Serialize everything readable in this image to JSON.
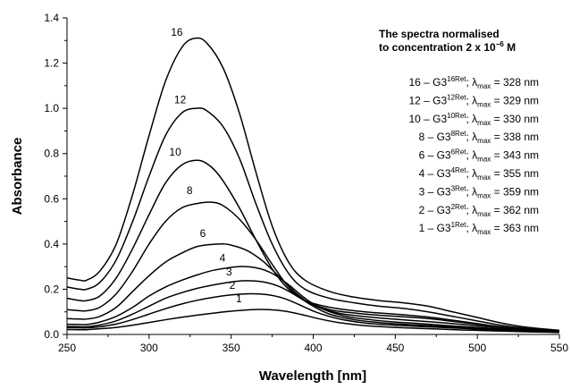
{
  "chart_data": {
    "type": "line",
    "xlabel": "Wavelength [nm]",
    "ylabel": "Absorbance",
    "xlim": [
      250,
      550
    ],
    "ylim": [
      0.0,
      1.4
    ],
    "xticks": [
      "250",
      "300",
      "350",
      "400",
      "450",
      "500",
      "550"
    ],
    "yticks": [
      "0.0",
      "0.2",
      "0.4",
      "0.6",
      "0.8",
      "1.0",
      "1.2",
      "1.4"
    ],
    "grid": false,
    "legend": {
      "placement": "top-right",
      "title_lines": [
        "The spectra normalised",
        "to concentration 2 x 10"
      ],
      "title_superscript": "−6",
      "title_suffix": " M",
      "entries": [
        {
          "prefix": "16 – G3",
          "sup": "16Ret",
          "mid": "; λ",
          "sub": "max",
          "suffix": " = 328 nm"
        },
        {
          "prefix": "12 – G3",
          "sup": "12Ret",
          "mid": "; λ",
          "sub": "max",
          "suffix": " = 329 nm"
        },
        {
          "prefix": "10 – G3",
          "sup": "10Ret",
          "mid": "; λ",
          "sub": "max",
          "suffix": " = 330 nm"
        },
        {
          "prefix": "8 – G3",
          "sup": "8Ret",
          "mid": "; λ",
          "sub": "max",
          "suffix": " = 338 nm"
        },
        {
          "prefix": "6 – G3",
          "sup": "6Ret",
          "mid": "; λ",
          "sub": "max",
          "suffix": " = 343 nm"
        },
        {
          "prefix": "4 – G3",
          "sup": "4Ret",
          "mid": "; λ",
          "sub": "max",
          "suffix": " = 355 nm"
        },
        {
          "prefix": "3 – G3",
          "sup": "3Ret",
          "mid": "; λ",
          "sub": "max",
          "suffix": " = 359 nm"
        },
        {
          "prefix": "2 – G3",
          "sup": "2Ret",
          "mid": "; λ",
          "sub": "max",
          "suffix": " = 362 nm"
        },
        {
          "prefix": "1 – G3",
          "sup": "1Ret",
          "mid": "; λ",
          "sub": "max",
          "suffix": " = 363 nm"
        }
      ]
    },
    "series": [
      {
        "name": "16",
        "label_at": [
          326,
          1.31
        ],
        "points": [
          [
            250,
            0.25
          ],
          [
            258,
            0.24
          ],
          [
            262,
            0.24
          ],
          [
            270,
            0.28
          ],
          [
            280,
            0.4
          ],
          [
            290,
            0.62
          ],
          [
            300,
            0.88
          ],
          [
            310,
            1.12
          ],
          [
            320,
            1.27
          ],
          [
            328,
            1.31
          ],
          [
            335,
            1.29
          ],
          [
            345,
            1.18
          ],
          [
            355,
            0.98
          ],
          [
            365,
            0.72
          ],
          [
            375,
            0.48
          ],
          [
            385,
            0.32
          ],
          [
            395,
            0.24
          ],
          [
            410,
            0.19
          ],
          [
            425,
            0.165
          ],
          [
            440,
            0.15
          ],
          [
            455,
            0.14
          ],
          [
            470,
            0.125
          ],
          [
            485,
            0.1
          ],
          [
            500,
            0.075
          ],
          [
            515,
            0.05
          ],
          [
            530,
            0.032
          ],
          [
            550,
            0.018
          ]
        ]
      },
      {
        "name": "12",
        "label_at": [
          328,
          1.01
        ],
        "points": [
          [
            250,
            0.21
          ],
          [
            258,
            0.2
          ],
          [
            262,
            0.2
          ],
          [
            270,
            0.23
          ],
          [
            280,
            0.33
          ],
          [
            290,
            0.5
          ],
          [
            300,
            0.7
          ],
          [
            310,
            0.88
          ],
          [
            320,
            0.98
          ],
          [
            329,
            1.0
          ],
          [
            335,
            0.99
          ],
          [
            345,
            0.92
          ],
          [
            355,
            0.78
          ],
          [
            365,
            0.58
          ],
          [
            375,
            0.4
          ],
          [
            385,
            0.27
          ],
          [
            395,
            0.2
          ],
          [
            410,
            0.16
          ],
          [
            425,
            0.14
          ],
          [
            440,
            0.125
          ],
          [
            455,
            0.115
          ],
          [
            470,
            0.1
          ],
          [
            485,
            0.08
          ],
          [
            500,
            0.06
          ],
          [
            515,
            0.04
          ],
          [
            530,
            0.026
          ],
          [
            550,
            0.015
          ]
        ]
      },
      {
        "name": "10",
        "label_at": [
          325,
          0.78
        ],
        "points": [
          [
            250,
            0.16
          ],
          [
            258,
            0.15
          ],
          [
            262,
            0.15
          ],
          [
            270,
            0.17
          ],
          [
            280,
            0.25
          ],
          [
            290,
            0.38
          ],
          [
            300,
            0.53
          ],
          [
            310,
            0.67
          ],
          [
            320,
            0.75
          ],
          [
            330,
            0.77
          ],
          [
            338,
            0.74
          ],
          [
            345,
            0.68
          ],
          [
            355,
            0.56
          ],
          [
            365,
            0.42
          ],
          [
            375,
            0.29
          ],
          [
            385,
            0.2
          ],
          [
            395,
            0.15
          ],
          [
            410,
            0.12
          ],
          [
            425,
            0.105
          ],
          [
            440,
            0.095
          ],
          [
            455,
            0.087
          ],
          [
            470,
            0.077
          ],
          [
            485,
            0.063
          ],
          [
            500,
            0.048
          ],
          [
            515,
            0.033
          ],
          [
            530,
            0.022
          ],
          [
            550,
            0.012
          ]
        ]
      },
      {
        "name": "8",
        "label_at": [
          332,
          0.61
        ],
        "points": [
          [
            250,
            0.11
          ],
          [
            258,
            0.105
          ],
          [
            262,
            0.105
          ],
          [
            270,
            0.12
          ],
          [
            280,
            0.18
          ],
          [
            290,
            0.28
          ],
          [
            300,
            0.4
          ],
          [
            310,
            0.5
          ],
          [
            320,
            0.56
          ],
          [
            330,
            0.58
          ],
          [
            338,
            0.585
          ],
          [
            345,
            0.57
          ],
          [
            355,
            0.51
          ],
          [
            365,
            0.42
          ],
          [
            375,
            0.31
          ],
          [
            385,
            0.21
          ],
          [
            395,
            0.15
          ],
          [
            410,
            0.11
          ],
          [
            425,
            0.095
          ],
          [
            440,
            0.085
          ],
          [
            455,
            0.078
          ],
          [
            470,
            0.07
          ],
          [
            485,
            0.058
          ],
          [
            500,
            0.045
          ],
          [
            515,
            0.032
          ],
          [
            530,
            0.021
          ],
          [
            550,
            0.012
          ]
        ]
      },
      {
        "name": "6",
        "label_at": [
          340,
          0.42
        ],
        "points": [
          [
            250,
            0.07
          ],
          [
            258,
            0.068
          ],
          [
            262,
            0.068
          ],
          [
            270,
            0.08
          ],
          [
            280,
            0.12
          ],
          [
            290,
            0.19
          ],
          [
            300,
            0.26
          ],
          [
            310,
            0.32
          ],
          [
            320,
            0.36
          ],
          [
            330,
            0.39
          ],
          [
            343,
            0.4
          ],
          [
            350,
            0.395
          ],
          [
            360,
            0.37
          ],
          [
            370,
            0.32
          ],
          [
            380,
            0.25
          ],
          [
            390,
            0.18
          ],
          [
            400,
            0.13
          ],
          [
            415,
            0.095
          ],
          [
            430,
            0.08
          ],
          [
            445,
            0.07
          ],
          [
            460,
            0.062
          ],
          [
            475,
            0.054
          ],
          [
            490,
            0.045
          ],
          [
            505,
            0.035
          ],
          [
            520,
            0.026
          ],
          [
            535,
            0.018
          ],
          [
            550,
            0.012
          ]
        ]
      },
      {
        "name": "4",
        "label_at": [
          352,
          0.31
        ],
        "points": [
          [
            250,
            0.045
          ],
          [
            258,
            0.044
          ],
          [
            262,
            0.044
          ],
          [
            270,
            0.055
          ],
          [
            280,
            0.08
          ],
          [
            290,
            0.12
          ],
          [
            300,
            0.17
          ],
          [
            310,
            0.21
          ],
          [
            320,
            0.24
          ],
          [
            330,
            0.265
          ],
          [
            340,
            0.285
          ],
          [
            355,
            0.3
          ],
          [
            365,
            0.295
          ],
          [
            375,
            0.27
          ],
          [
            385,
            0.22
          ],
          [
            395,
            0.16
          ],
          [
            405,
            0.115
          ],
          [
            420,
            0.08
          ],
          [
            435,
            0.065
          ],
          [
            450,
            0.055
          ],
          [
            465,
            0.048
          ],
          [
            480,
            0.04
          ],
          [
            495,
            0.033
          ],
          [
            510,
            0.026
          ],
          [
            525,
            0.02
          ],
          [
            550,
            0.012
          ]
        ]
      },
      {
        "name": "3",
        "label_at": [
          356,
          0.25
        ],
        "points": [
          [
            250,
            0.035
          ],
          [
            258,
            0.034
          ],
          [
            262,
            0.034
          ],
          [
            270,
            0.042
          ],
          [
            280,
            0.06
          ],
          [
            290,
            0.09
          ],
          [
            300,
            0.125
          ],
          [
            310,
            0.16
          ],
          [
            320,
            0.185
          ],
          [
            330,
            0.205
          ],
          [
            340,
            0.22
          ],
          [
            350,
            0.232
          ],
          [
            359,
            0.238
          ],
          [
            370,
            0.232
          ],
          [
            380,
            0.21
          ],
          [
            390,
            0.17
          ],
          [
            400,
            0.125
          ],
          [
            410,
            0.09
          ],
          [
            425,
            0.065
          ],
          [
            440,
            0.053
          ],
          [
            455,
            0.045
          ],
          [
            470,
            0.039
          ],
          [
            485,
            0.033
          ],
          [
            500,
            0.027
          ],
          [
            515,
            0.021
          ],
          [
            530,
            0.016
          ],
          [
            550,
            0.011
          ]
        ]
      },
      {
        "name": "2",
        "label_at": [
          358,
          0.19
        ],
        "points": [
          [
            250,
            0.03
          ],
          [
            258,
            0.029
          ],
          [
            262,
            0.029
          ],
          [
            270,
            0.034
          ],
          [
            280,
            0.046
          ],
          [
            290,
            0.066
          ],
          [
            300,
            0.09
          ],
          [
            310,
            0.114
          ],
          [
            320,
            0.135
          ],
          [
            330,
            0.152
          ],
          [
            340,
            0.165
          ],
          [
            350,
            0.175
          ],
          [
            362,
            0.18
          ],
          [
            372,
            0.176
          ],
          [
            382,
            0.16
          ],
          [
            392,
            0.13
          ],
          [
            402,
            0.098
          ],
          [
            415,
            0.07
          ],
          [
            430,
            0.052
          ],
          [
            445,
            0.043
          ],
          [
            460,
            0.037
          ],
          [
            475,
            0.032
          ],
          [
            490,
            0.027
          ],
          [
            505,
            0.022
          ],
          [
            520,
            0.017
          ],
          [
            535,
            0.013
          ],
          [
            550,
            0.01
          ]
        ]
      },
      {
        "name": "1",
        "label_at": [
          362,
          0.13
        ],
        "points": [
          [
            250,
            0.022
          ],
          [
            258,
            0.021
          ],
          [
            262,
            0.021
          ],
          [
            270,
            0.025
          ],
          [
            280,
            0.031
          ],
          [
            290,
            0.041
          ],
          [
            300,
            0.053
          ],
          [
            310,
            0.065
          ],
          [
            320,
            0.076
          ],
          [
            330,
            0.086
          ],
          [
            340,
            0.095
          ],
          [
            350,
            0.103
          ],
          [
            363,
            0.11
          ],
          [
            373,
            0.11
          ],
          [
            383,
            0.103
          ],
          [
            393,
            0.088
          ],
          [
            403,
            0.07
          ],
          [
            415,
            0.053
          ],
          [
            430,
            0.04
          ],
          [
            445,
            0.033
          ],
          [
            460,
            0.028
          ],
          [
            475,
            0.024
          ],
          [
            490,
            0.02
          ],
          [
            505,
            0.017
          ],
          [
            520,
            0.014
          ],
          [
            535,
            0.011
          ],
          [
            550,
            0.009
          ]
        ]
      }
    ]
  }
}
